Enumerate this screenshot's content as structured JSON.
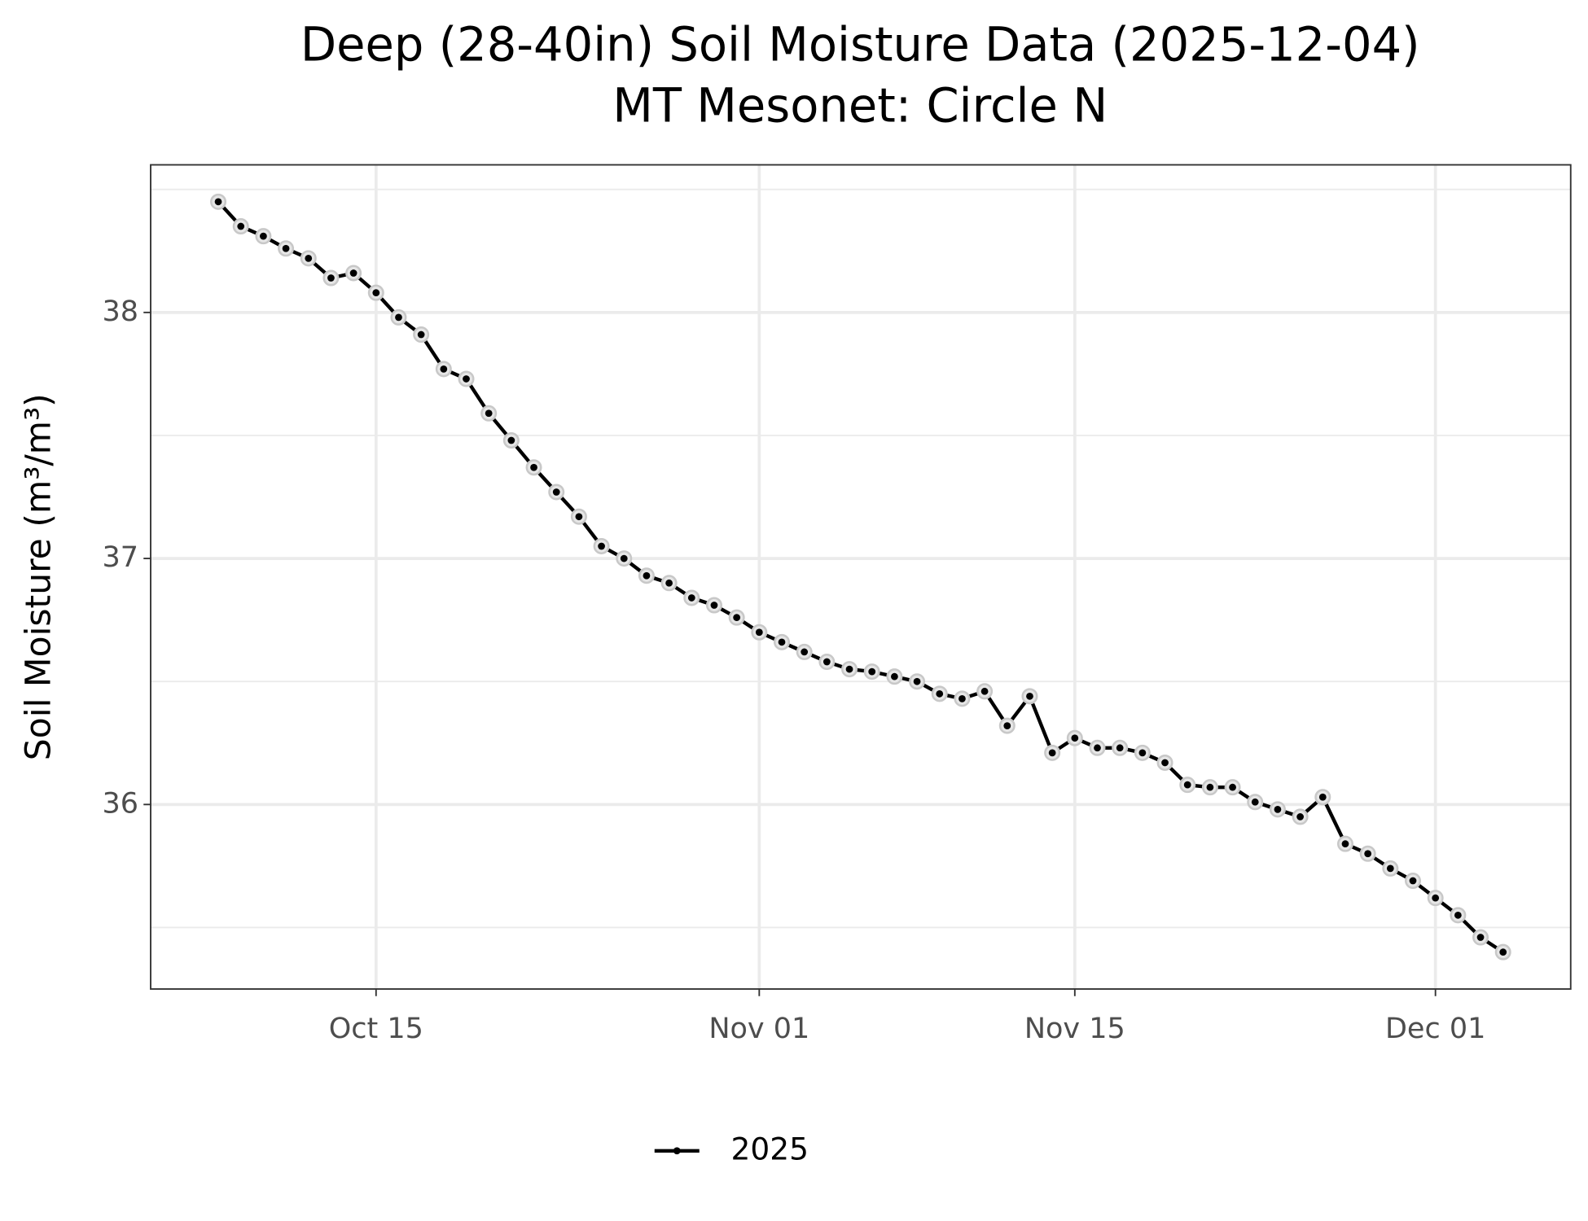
{
  "chart_data": {
    "type": "line",
    "title": "Deep (28-40in) Soil Moisture Data (2025-12-04)",
    "subtitle": "MT Mesonet: Circle N",
    "y_label": "Soil Moisture (m³/m³)",
    "x": [
      "Oct 08",
      "Oct 09",
      "Oct 10",
      "Oct 11",
      "Oct 12",
      "Oct 13",
      "Oct 14",
      "Oct 15",
      "Oct 16",
      "Oct 17",
      "Oct 18",
      "Oct 19",
      "Oct 20",
      "Oct 21",
      "Oct 22",
      "Oct 23",
      "Oct 24",
      "Oct 25",
      "Oct 26",
      "Oct 27",
      "Oct 28",
      "Oct 29",
      "Oct 30",
      "Oct 31",
      "Nov 01",
      "Nov 02",
      "Nov 03",
      "Nov 04",
      "Nov 05",
      "Nov 06",
      "Nov 07",
      "Nov 08",
      "Nov 09",
      "Nov 10",
      "Nov 11",
      "Nov 12",
      "Nov 13",
      "Nov 14",
      "Nov 15",
      "Nov 16",
      "Nov 17",
      "Nov 18",
      "Nov 19",
      "Nov 20",
      "Nov 21",
      "Nov 22",
      "Nov 23",
      "Nov 24",
      "Nov 25",
      "Nov 26",
      "Nov 27",
      "Nov 28",
      "Nov 29",
      "Nov 30",
      "Dec 01",
      "Dec 02",
      "Dec 03",
      "Dec 04"
    ],
    "series": [
      {
        "name": "2025",
        "color": "#000000",
        "values": [
          38.45,
          38.35,
          38.31,
          38.26,
          38.22,
          38.14,
          38.16,
          38.08,
          37.98,
          37.91,
          37.77,
          37.73,
          37.59,
          37.48,
          37.37,
          37.27,
          37.17,
          37.05,
          37.0,
          36.93,
          36.9,
          36.84,
          36.81,
          36.76,
          36.7,
          36.66,
          36.62,
          36.58,
          36.55,
          36.54,
          36.52,
          36.5,
          36.45,
          36.43,
          36.46,
          36.32,
          36.44,
          36.21,
          36.27,
          36.23,
          36.23,
          36.21,
          36.17,
          36.08,
          36.07,
          36.07,
          36.01,
          35.98,
          35.95,
          36.03,
          35.84,
          35.8,
          35.74,
          35.69,
          35.62,
          35.55,
          35.46,
          35.4
        ]
      }
    ],
    "xlim": [
      "Oct 05",
      "Dec 07"
    ],
    "xticks": [
      "Oct 15",
      "Nov 01",
      "Nov 15",
      "Dec 01"
    ],
    "ylim": [
      35.25,
      38.6
    ],
    "yticks": [
      36,
      37,
      38
    ],
    "yminor": [
      35.5,
      36.5,
      37.5,
      38.5
    ],
    "grid": true,
    "legend": "bottom"
  }
}
